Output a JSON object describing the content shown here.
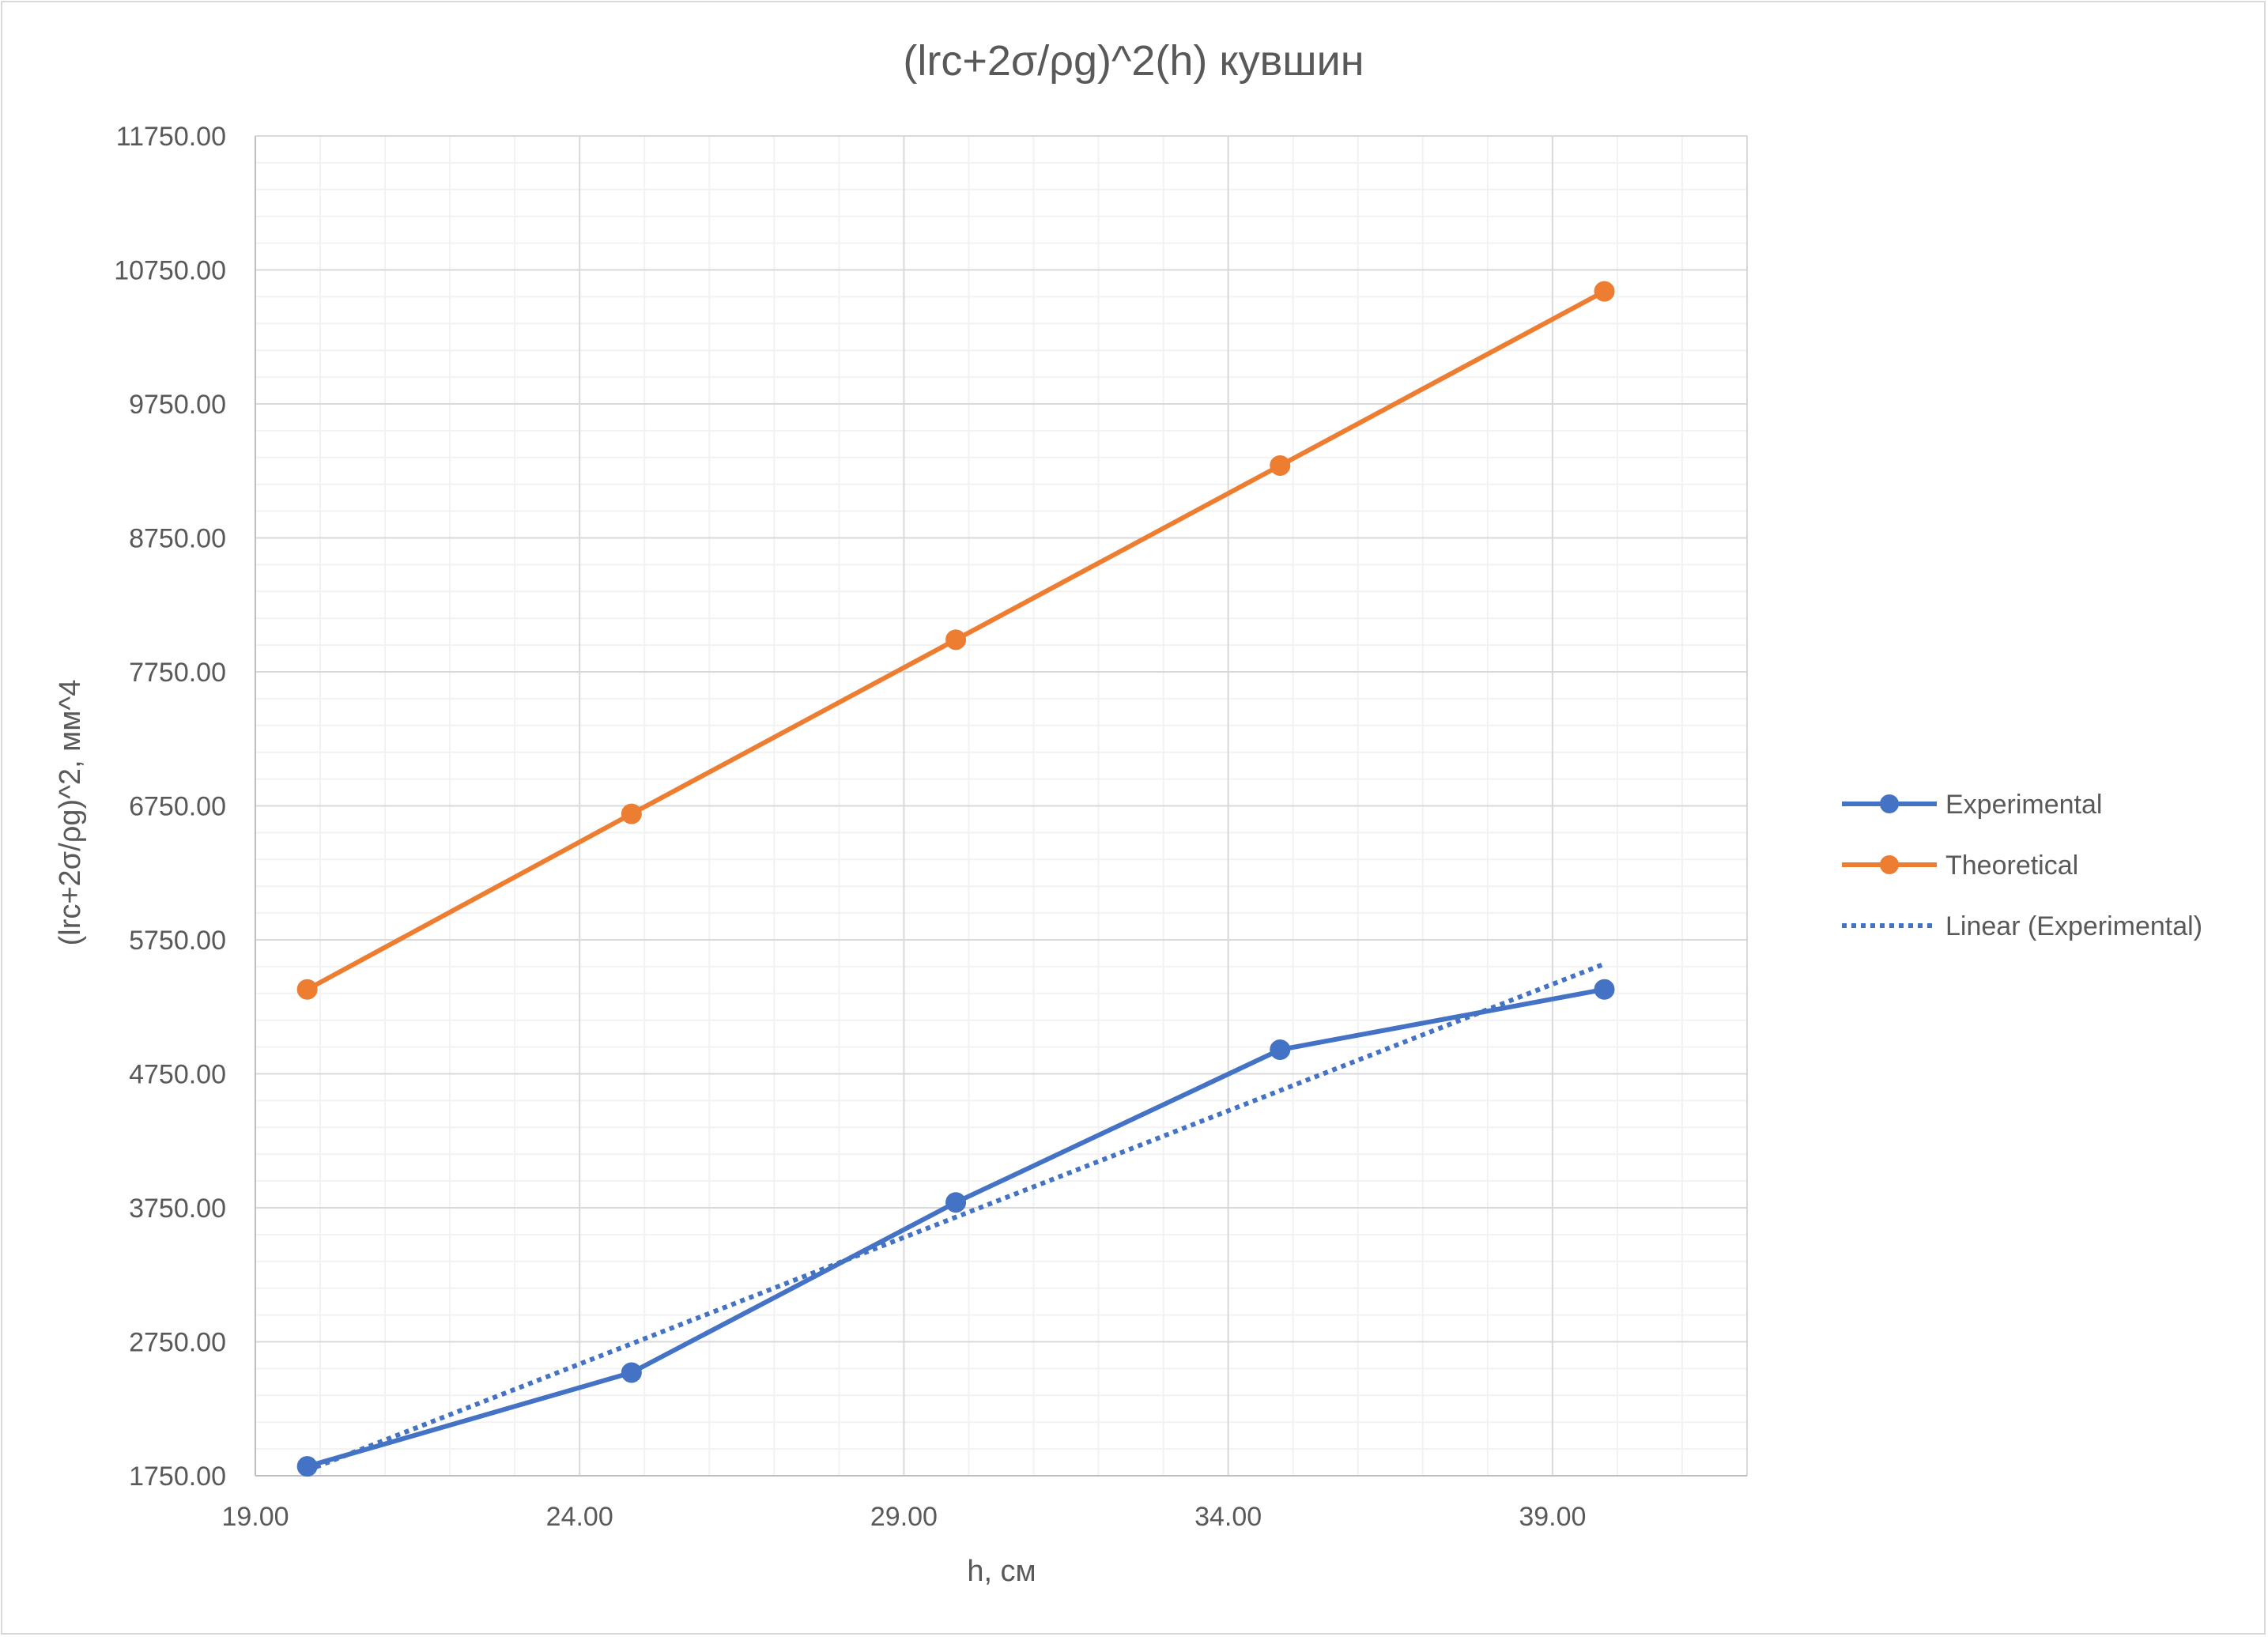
{
  "chart_data": {
    "type": "line",
    "title": "(lrc+2σ/ρg)^2(h) кувшин",
    "xlabel": "h, см",
    "ylabel": "(lrc+2σ/ρg)^2, мм^4",
    "xlim": [
      19.0,
      42.0
    ],
    "ylim": [
      1750.0,
      11750.0
    ],
    "x_ticks": [
      "19.00",
      "24.00",
      "29.00",
      "34.00",
      "39.00"
    ],
    "y_ticks": [
      "1750.00",
      "2750.00",
      "3750.00",
      "4750.00",
      "5750.00",
      "6750.00",
      "7750.00",
      "8750.00",
      "9750.00",
      "10750.00",
      "11750.00"
    ],
    "x_major_values": [
      19,
      24,
      29,
      34,
      39
    ],
    "x_minor_step": 1,
    "y_minor_step": 200,
    "grid": true,
    "legend_position": "right",
    "series": [
      {
        "name": "Experimental",
        "color": "#4472C4",
        "style": "solid-markers",
        "x": [
          19.8,
          24.8,
          29.8,
          34.8,
          39.8
        ],
        "y": [
          1820,
          2520,
          3790,
          4930,
          5380
        ]
      },
      {
        "name": "Theoretical",
        "color": "#ED7D31",
        "style": "solid-markers",
        "x": [
          19.8,
          24.8,
          29.8,
          34.8,
          39.8
        ],
        "y": [
          5380,
          6690,
          7990,
          9290,
          10590
        ]
      },
      {
        "name": "Linear (Experimental)",
        "color": "#4472C4",
        "style": "dotted-trend",
        "x": [
          19.8,
          39.8
        ],
        "y": [
          1790,
          5570
        ]
      }
    ]
  }
}
